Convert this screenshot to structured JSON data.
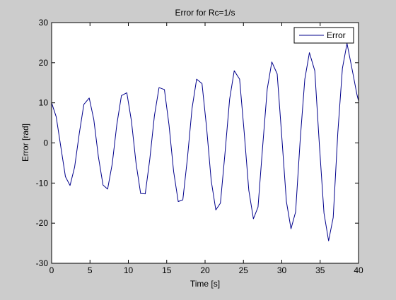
{
  "chart_data": {
    "type": "line",
    "title": "Error for Rc=1/s",
    "xlabel": "Time [s]",
    "ylabel": "Error [rad]",
    "xlim": [
      0,
      40
    ],
    "ylim": [
      -30,
      30
    ],
    "xticks": [
      0,
      5,
      10,
      15,
      20,
      25,
      30,
      35,
      40
    ],
    "yticks": [
      -30,
      -20,
      -10,
      0,
      10,
      20,
      30
    ],
    "grid": false,
    "legend_position": "top-right",
    "series": [
      {
        "name": "Error",
        "color": "#00008b",
        "x": [
          0,
          0.6,
          1.2,
          1.8,
          2.4,
          3.0,
          3.6,
          4.2,
          4.9,
          5.5,
          6.1,
          6.7,
          7.3,
          7.9,
          8.5,
          9.1,
          9.8,
          10.4,
          11.0,
          11.6,
          12.2,
          12.8,
          13.4,
          14.0,
          14.7,
          15.3,
          15.9,
          16.5,
          17.1,
          17.7,
          18.3,
          18.9,
          19.6,
          20.2,
          20.8,
          21.4,
          22.0,
          22.6,
          23.2,
          23.8,
          24.5,
          25.1,
          25.7,
          26.3,
          26.9,
          27.5,
          28.1,
          28.7,
          29.4,
          30.0,
          30.6,
          31.2,
          31.8,
          32.4,
          33.0,
          33.6,
          34.3,
          34.9,
          35.5,
          36.1,
          36.7,
          37.3,
          37.9,
          38.5,
          39.2,
          39.8,
          40.0
        ],
        "y": [
          10.0,
          6.5,
          -1.0,
          -8.4,
          -10.6,
          -6.0,
          2.3,
          9.6,
          11.2,
          5.8,
          -3.5,
          -10.5,
          -11.5,
          -5.2,
          4.6,
          11.8,
          12.5,
          5.5,
          -5.0,
          -12.6,
          -12.7,
          -4.0,
          6.8,
          13.8,
          13.3,
          4.5,
          -7.1,
          -14.6,
          -14.2,
          -3.8,
          8.6,
          15.9,
          14.8,
          3.8,
          -9.4,
          -16.7,
          -15.0,
          -2.5,
          10.9,
          18.0,
          15.9,
          2.6,
          -11.8,
          -18.9,
          -16.0,
          -1.0,
          13.4,
          20.2,
          17.2,
          1.5,
          -14.6,
          -21.4,
          -17.2,
          0.8,
          15.9,
          22.5,
          18.0,
          -0.5,
          -17.5,
          -24.4,
          -18.6,
          2.5,
          18.6,
          24.8,
          18.0,
          12.0,
          10.5
        ]
      }
    ]
  }
}
